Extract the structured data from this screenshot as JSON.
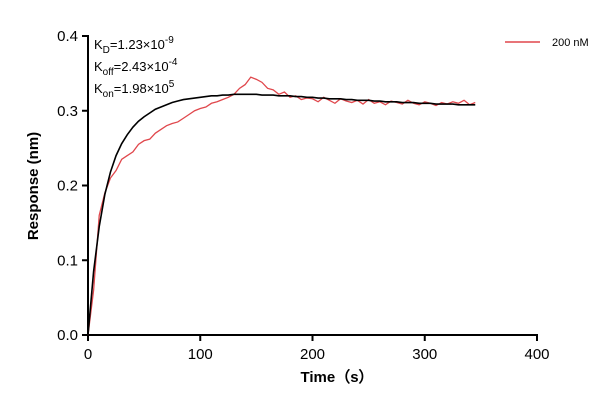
{
  "chart_data": {
    "type": "line",
    "xlabel": "Time（s）",
    "ylabel": "Response (nm)",
    "annotations": [
      {
        "symbol": "K",
        "subscript": "D",
        "text": "=1.23×10",
        "exponent": "-9"
      },
      {
        "symbol": "K",
        "subscript": "off",
        "text": "=2.43×10",
        "exponent": "-4"
      },
      {
        "symbol": "K",
        "subscript": "on",
        "text": "=1.98×10",
        "exponent": "5"
      }
    ],
    "xlim": [
      0,
      400
    ],
    "xticks": [
      0,
      100,
      200,
      300,
      400
    ],
    "ylim": [
      0,
      0.4
    ],
    "yticks": [
      {
        "value": 0,
        "label": "0.0"
      },
      0.1,
      0.2,
      0.3,
      0.4
    ],
    "legend": "upper right",
    "x": [
      0,
      5,
      10,
      15,
      20,
      25,
      30,
      35,
      40,
      45,
      50,
      55,
      60,
      65,
      70,
      75,
      80,
      85,
      90,
      95,
      100,
      105,
      110,
      115,
      120,
      125,
      130,
      135,
      140,
      145,
      150,
      155,
      160,
      165,
      170,
      175,
      180,
      185,
      190,
      195,
      200,
      205,
      210,
      215,
      220,
      225,
      230,
      235,
      240,
      245,
      250,
      255,
      260,
      265,
      270,
      275,
      280,
      285,
      290,
      295,
      300,
      305,
      310,
      315,
      320,
      325,
      330,
      335,
      340,
      345
    ],
    "series": [
      {
        "name": "200 nM",
        "color": "#e0474c",
        "values": [
          0,
          0.06,
          0.16,
          0.19,
          0.21,
          0.22,
          0.235,
          0.24,
          0.245,
          0.255,
          0.26,
          0.262,
          0.27,
          0.275,
          0.28,
          0.283,
          0.285,
          0.29,
          0.295,
          0.3,
          0.303,
          0.305,
          0.31,
          0.312,
          0.315,
          0.318,
          0.322,
          0.33,
          0.335,
          0.345,
          0.342,
          0.338,
          0.33,
          0.328,
          0.322,
          0.325,
          0.318,
          0.32,
          0.315,
          0.317,
          0.316,
          0.312,
          0.318,
          0.314,
          0.31,
          0.316,
          0.313,
          0.311,
          0.314,
          0.309,
          0.315,
          0.31,
          0.312,
          0.308,
          0.313,
          0.311,
          0.309,
          0.314,
          0.31,
          0.308,
          0.312,
          0.31,
          0.307,
          0.311,
          0.309,
          0.312,
          0.31,
          0.314,
          0.308,
          0.311
        ]
      },
      {
        "color": "#000000",
        "values": [
          0,
          0.085,
          0.145,
          0.188,
          0.218,
          0.24,
          0.256,
          0.268,
          0.278,
          0.286,
          0.292,
          0.297,
          0.302,
          0.305,
          0.308,
          0.311,
          0.313,
          0.315,
          0.316,
          0.317,
          0.318,
          0.319,
          0.32,
          0.32,
          0.321,
          0.321,
          0.322,
          0.322,
          0.322,
          0.322,
          0.322,
          0.321,
          0.321,
          0.321,
          0.32,
          0.32,
          0.32,
          0.319,
          0.319,
          0.318,
          0.318,
          0.317,
          0.317,
          0.316,
          0.316,
          0.316,
          0.315,
          0.315,
          0.314,
          0.314,
          0.314,
          0.313,
          0.313,
          0.312,
          0.312,
          0.312,
          0.311,
          0.311,
          0.311,
          0.31,
          0.31,
          0.31,
          0.309,
          0.309,
          0.309,
          0.309,
          0.308,
          0.308,
          0.308,
          0.308
        ]
      }
    ]
  }
}
